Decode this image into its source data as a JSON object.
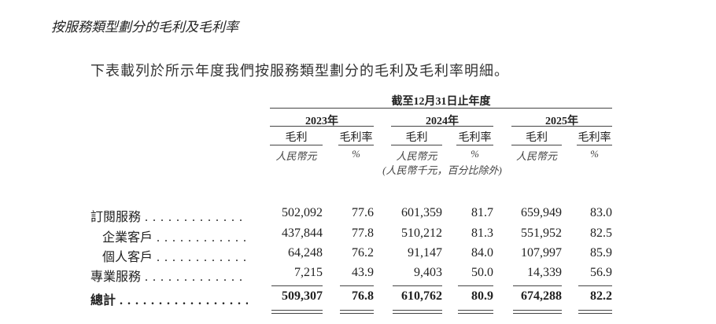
{
  "heading": "按服務類型劃分的毛利及毛利率",
  "intro": "下表載列於所示年度我們按服務類型劃分的毛利及毛利率明細。",
  "table": {
    "period_header": "截至12月31日止年度",
    "years": [
      "2023年",
      "2024年",
      "2025年"
    ],
    "sub_headers": [
      "毛利",
      "毛利率"
    ],
    "units": [
      "人民幣元",
      "%"
    ],
    "note": "(人民幣千元，百分比除外)",
    "rows": [
      {
        "label": "訂閱服務",
        "indent": false,
        "bold": false,
        "values": [
          "502,092",
          "77.6",
          "601,359",
          "81.7",
          "659,949",
          "83.0"
        ]
      },
      {
        "label": "企業客戶",
        "indent": true,
        "bold": false,
        "values": [
          "437,844",
          "77.8",
          "510,212",
          "81.3",
          "551,952",
          "82.5"
        ]
      },
      {
        "label": "個人客戶",
        "indent": true,
        "bold": false,
        "values": [
          "64,248",
          "76.2",
          "91,147",
          "84.0",
          "107,997",
          "85.9"
        ]
      },
      {
        "label": "專業服務",
        "indent": false,
        "bold": false,
        "values": [
          "7,215",
          "43.9",
          "9,403",
          "50.0",
          "14,339",
          "56.9"
        ]
      },
      {
        "label": "總計",
        "indent": false,
        "bold": true,
        "values": [
          "509,307",
          "76.8",
          "610,762",
          "80.9",
          "674,288",
          "82.2"
        ]
      }
    ]
  }
}
